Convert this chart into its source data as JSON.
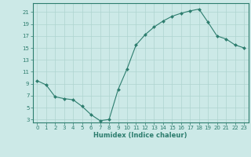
{
  "x": [
    0,
    1,
    2,
    3,
    4,
    5,
    6,
    7,
    8,
    9,
    10,
    11,
    12,
    13,
    14,
    15,
    16,
    17,
    18,
    19,
    20,
    21,
    22,
    23
  ],
  "y": [
    9.5,
    8.8,
    6.8,
    6.5,
    6.3,
    5.2,
    3.8,
    2.8,
    3.0,
    8.0,
    11.5,
    15.5,
    17.2,
    18.5,
    19.5,
    20.3,
    20.8,
    21.2,
    21.5,
    19.3,
    17.0,
    16.5,
    15.5,
    15.0
  ],
  "xlabel": "Humidex (Indice chaleur)",
  "yticks": [
    3,
    5,
    7,
    9,
    11,
    13,
    15,
    17,
    19,
    21
  ],
  "xticks": [
    0,
    1,
    2,
    3,
    4,
    5,
    6,
    7,
    8,
    9,
    10,
    11,
    12,
    13,
    14,
    15,
    16,
    17,
    18,
    19,
    20,
    21,
    22,
    23
  ],
  "ylim": [
    2.5,
    22.5
  ],
  "xlim": [
    -0.5,
    23.5
  ],
  "line_color": "#2d7d6e",
  "marker_color": "#2d7d6e",
  "bg_color": "#cce9e7",
  "grid_color": "#aed4d0",
  "axis_color": "#2d7d6e",
  "tick_color": "#2d7d6e",
  "label_color": "#2d7d6e"
}
